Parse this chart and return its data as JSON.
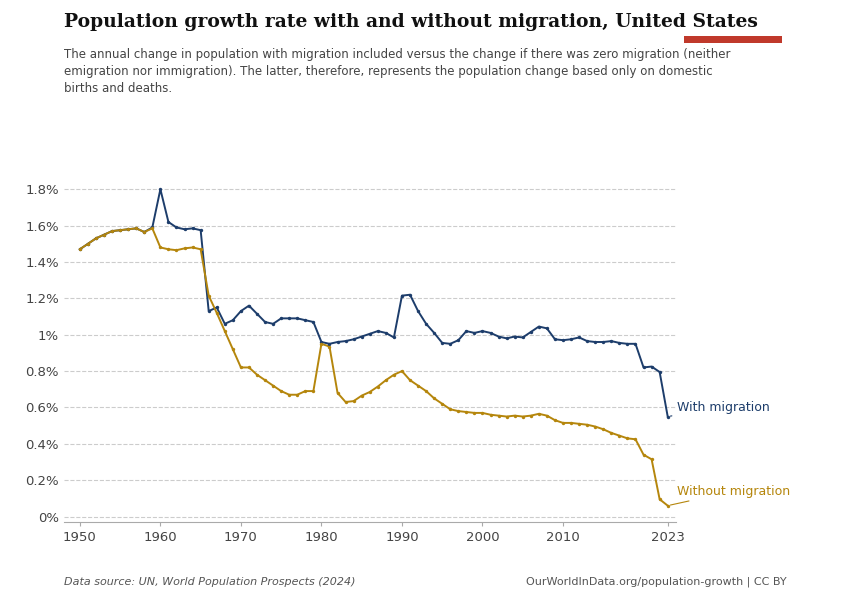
{
  "title": "Population growth rate with and without migration, United States",
  "subtitle": "The annual change in population with migration included versus the change if there was zero migration (neither\nemigration nor immigration). The latter, therefore, represents the population change based only on domestic\nbirths and deaths.",
  "data_source": "Data source: UN, World Population Prospects (2024)",
  "credit": "OurWorldInData.org/population-growth | CC BY",
  "with_migration_label": "With migration",
  "without_migration_label": "Without migration",
  "color_with": "#1d3d6b",
  "color_without": "#b5860c",
  "years_with": [
    1950,
    1951,
    1952,
    1953,
    1954,
    1955,
    1956,
    1957,
    1958,
    1959,
    1960,
    1961,
    1962,
    1963,
    1964,
    1965,
    1966,
    1967,
    1968,
    1969,
    1970,
    1971,
    1972,
    1973,
    1974,
    1975,
    1976,
    1977,
    1978,
    1979,
    1980,
    1981,
    1982,
    1983,
    1984,
    1985,
    1986,
    1987,
    1988,
    1989,
    1990,
    1991,
    1992,
    1993,
    1994,
    1995,
    1996,
    1997,
    1998,
    1999,
    2000,
    2001,
    2002,
    2003,
    2004,
    2005,
    2006,
    2007,
    2008,
    2009,
    2010,
    2011,
    2012,
    2013,
    2014,
    2015,
    2016,
    2017,
    2018,
    2019,
    2020,
    2021,
    2022,
    2023
  ],
  "values_with": [
    0.0147,
    0.015,
    0.0153,
    0.0155,
    0.0157,
    0.01575,
    0.0158,
    0.01585,
    0.01565,
    0.0159,
    0.018,
    0.0162,
    0.0159,
    0.0158,
    0.01585,
    0.01575,
    0.0113,
    0.0115,
    0.0106,
    0.0108,
    0.0113,
    0.0116,
    0.01115,
    0.0107,
    0.0106,
    0.0109,
    0.0109,
    0.0109,
    0.0108,
    0.0107,
    0.0096,
    0.0095,
    0.0096,
    0.00965,
    0.00975,
    0.0099,
    0.01005,
    0.0102,
    0.0101,
    0.00985,
    0.01215,
    0.0122,
    0.0113,
    0.0106,
    0.0101,
    0.00955,
    0.0095,
    0.0097,
    0.0102,
    0.0101,
    0.0102,
    0.0101,
    0.0099,
    0.0098,
    0.0099,
    0.00985,
    0.01015,
    0.01045,
    0.01035,
    0.00975,
    0.0097,
    0.00975,
    0.00985,
    0.00965,
    0.0096,
    0.0096,
    0.00965,
    0.00955,
    0.0095,
    0.0095,
    0.0082,
    0.00825,
    0.00795,
    0.0055
  ],
  "years_without": [
    1950,
    1951,
    1952,
    1953,
    1954,
    1955,
    1956,
    1957,
    1958,
    1959,
    1960,
    1961,
    1962,
    1963,
    1964,
    1965,
    1966,
    1967,
    1968,
    1969,
    1970,
    1971,
    1972,
    1973,
    1974,
    1975,
    1976,
    1977,
    1978,
    1979,
    1980,
    1981,
    1982,
    1983,
    1984,
    1985,
    1986,
    1987,
    1988,
    1989,
    1990,
    1991,
    1992,
    1993,
    1994,
    1995,
    1996,
    1997,
    1998,
    1999,
    2000,
    2001,
    2002,
    2003,
    2004,
    2005,
    2006,
    2007,
    2008,
    2009,
    2010,
    2011,
    2012,
    2013,
    2014,
    2015,
    2016,
    2017,
    2018,
    2019,
    2020,
    2021,
    2022,
    2023
  ],
  "values_without": [
    0.0147,
    0.015,
    0.0153,
    0.0155,
    0.0157,
    0.01575,
    0.0158,
    0.01585,
    0.01565,
    0.01585,
    0.0148,
    0.0147,
    0.01465,
    0.01475,
    0.0148,
    0.0147,
    0.01215,
    0.0112,
    0.0102,
    0.0092,
    0.0082,
    0.0082,
    0.0078,
    0.0075,
    0.0072,
    0.0069,
    0.0067,
    0.0067,
    0.0069,
    0.0069,
    0.0095,
    0.00935,
    0.0068,
    0.0063,
    0.00635,
    0.00665,
    0.00685,
    0.00715,
    0.0075,
    0.0078,
    0.008,
    0.0075,
    0.0072,
    0.0069,
    0.0065,
    0.0062,
    0.0059,
    0.0058,
    0.00575,
    0.0057,
    0.0057,
    0.0056,
    0.00555,
    0.0055,
    0.00555,
    0.0055,
    0.00555,
    0.00565,
    0.00555,
    0.0053,
    0.00515,
    0.00515,
    0.0051,
    0.00505,
    0.00495,
    0.0048,
    0.0046,
    0.00445,
    0.0043,
    0.00425,
    0.0034,
    0.00315,
    0.00095,
    0.0006
  ],
  "yticks": [
    0.0,
    0.002,
    0.004,
    0.006,
    0.008,
    0.01,
    0.012,
    0.014,
    0.016,
    0.018
  ],
  "ytick_labels": [
    "0%",
    "0.2%",
    "0.4%",
    "0.6%",
    "0.8%",
    "1%",
    "1.2%",
    "1.4%",
    "1.6%",
    "1.8%"
  ],
  "xticks": [
    1950,
    1960,
    1970,
    1980,
    1990,
    2000,
    2010,
    2023
  ],
  "xtick_labels": [
    "1950",
    "1960",
    "1970",
    "1980",
    "1990",
    "2000",
    "2010",
    "2023"
  ],
  "bg_color": "#ffffff",
  "grid_color": "#cccccc"
}
